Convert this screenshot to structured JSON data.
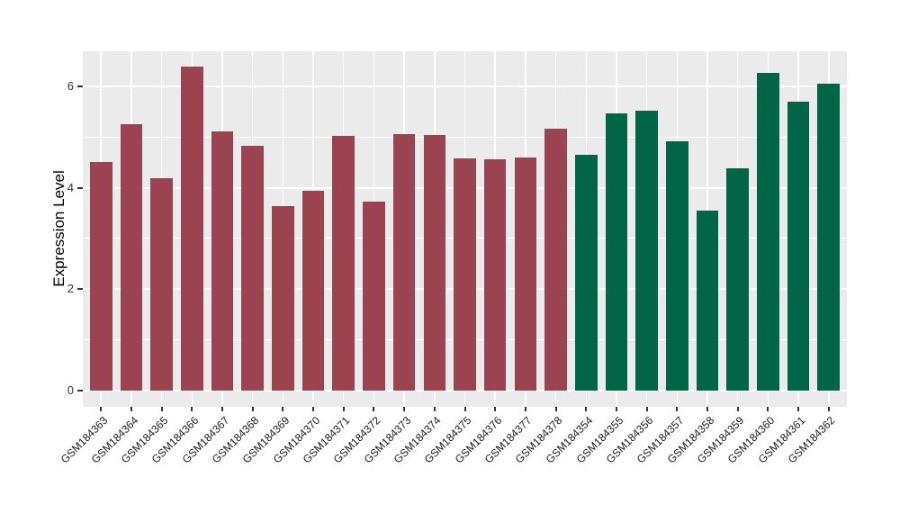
{
  "chart_data": {
    "type": "bar",
    "title": "",
    "xlabel": "",
    "ylabel": "Expression Level",
    "ylim": [
      0,
      6.69
    ],
    "yticks_major": [
      0,
      2,
      4,
      6
    ],
    "yticks_minor": [
      1,
      3,
      5
    ],
    "grid": "on",
    "legend_position": "none",
    "categories": [
      "GSM184363",
      "GSM184364",
      "GSM184365",
      "GSM184366",
      "GSM184367",
      "GSM184368",
      "GSM184369",
      "GSM184370",
      "GSM184371",
      "GSM184372",
      "GSM184373",
      "GSM184374",
      "GSM184375",
      "GSM184376",
      "GSM184377",
      "GSM184378",
      "GSM184354",
      "GSM184355",
      "GSM184356",
      "GSM184357",
      "GSM184358",
      "GSM184359",
      "GSM184360",
      "GSM184361",
      "GSM184362"
    ],
    "values": [
      4.5,
      5.25,
      4.18,
      6.38,
      5.11,
      4.83,
      3.64,
      3.94,
      5.02,
      3.73,
      5.05,
      5.03,
      4.58,
      4.56,
      4.59,
      5.17,
      4.64,
      5.47,
      5.52,
      4.91,
      3.54,
      4.39,
      6.26,
      5.7,
      6.05
    ],
    "group_split_index": 16,
    "colors": {
      "group1_bar": "#9B4450",
      "group2_bar": "#006647",
      "panel_background": "#EBEBEB",
      "gridline": "#FFFFFF",
      "axis_text": "#333333",
      "x_label_text": "#1A1A1A",
      "y_title_text": "#000000"
    }
  }
}
